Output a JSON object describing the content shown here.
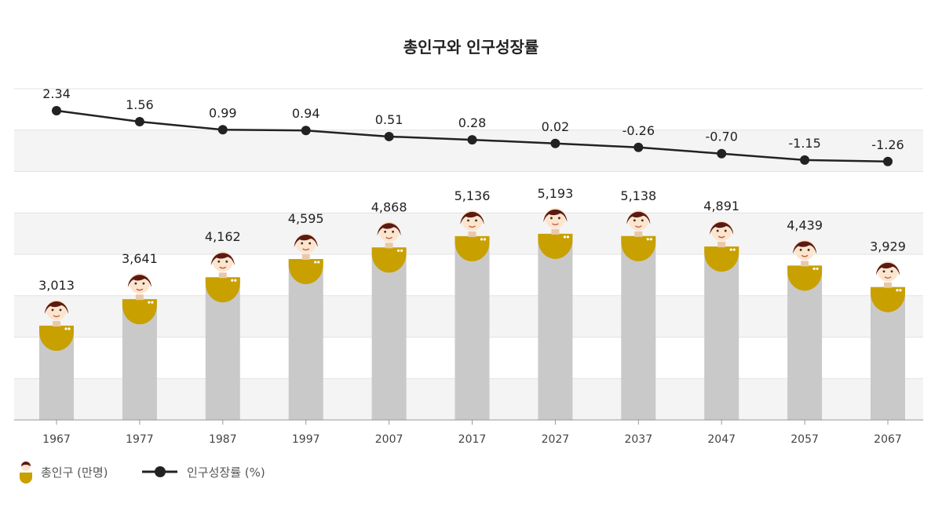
{
  "chart_data": {
    "type": "bar",
    "title": "총인구와 인구성장률",
    "categories": [
      "1967",
      "1977",
      "1987",
      "1997",
      "2007",
      "2017",
      "2027",
      "2037",
      "2047",
      "2057",
      "2067"
    ],
    "series": [
      {
        "name": "총인구 (만명)",
        "type": "bar",
        "marker": "person-icon",
        "color": "#c9c9c9",
        "values": [
          3013,
          3641,
          4162,
          4595,
          4868,
          5136,
          5193,
          5138,
          4891,
          4439,
          3929
        ],
        "labels": [
          "3,013",
          "3,641",
          "4,162",
          "4,595",
          "4,868",
          "5,136",
          "5,193",
          "5,138",
          "4,891",
          "4,439",
          "3,929"
        ]
      },
      {
        "name": "인구성장률 (%)",
        "type": "line",
        "color": "#222222",
        "values": [
          2.34,
          1.56,
          0.99,
          0.94,
          0.51,
          0.28,
          0.02,
          -0.26,
          -0.7,
          -1.15,
          -1.26
        ],
        "labels": [
          "2.34",
          "1.56",
          "0.99",
          "0.94",
          "0.51",
          "0.28",
          "0.02",
          "-0.26",
          "-0.70",
          "-1.15",
          "-1.26"
        ]
      }
    ],
    "grid": true,
    "legend": "bottom-left",
    "colors": {
      "shirt": "#c8a000",
      "skin": "#fde4cc",
      "hair": "#5b1a12",
      "band": "#f4f4f4"
    }
  }
}
